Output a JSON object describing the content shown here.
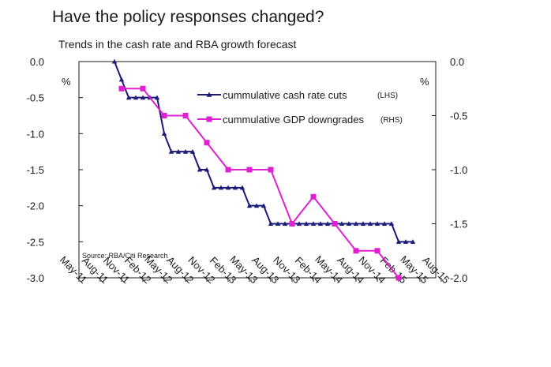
{
  "title": "Have the policy responses changed?",
  "subtitle": "Trends in the cash rate and RBA growth forecast",
  "chart_data": {
    "type": "line",
    "left_axis": {
      "unit": "%",
      "ylim": [
        -3.0,
        0.0
      ],
      "ticks": [
        "0.0",
        "-0.5",
        "-1.0",
        "-1.5",
        "-2.0",
        "-2.5",
        "-3.0"
      ]
    },
    "right_axis": {
      "unit": "%",
      "ylim": [
        -2.0,
        0.0
      ],
      "ticks": [
        "0.0",
        "-0.5",
        "-1.0",
        "-1.5",
        "-2.0"
      ]
    },
    "x_ticks": [
      "May-11",
      "Aug-11",
      "Nov-11",
      "Feb-12",
      "May-12",
      "Aug-12",
      "Nov-12",
      "Feb-13",
      "May-13",
      "Aug-13",
      "Nov-13",
      "Feb-14",
      "May-14",
      "Aug-14",
      "Nov-14",
      "Feb-15",
      "May-15",
      "Aug-15"
    ],
    "series": [
      {
        "name": "cummulative cash rate cuts",
        "axis_tag": "(LHS)",
        "axis": "left",
        "color": "#1a1a7a",
        "marker": "triangle",
        "points": [
          [
            "Oct-11",
            0.0
          ],
          [
            "Nov-11",
            -0.25
          ],
          [
            "Dec-11",
            -0.5
          ],
          [
            "Jan-12",
            -0.5
          ],
          [
            "Feb-12",
            -0.5
          ],
          [
            "Mar-12",
            -0.5
          ],
          [
            "Apr-12",
            -0.5
          ],
          [
            "May-12",
            -1.0
          ],
          [
            "Jun-12",
            -1.25
          ],
          [
            "Jul-12",
            -1.25
          ],
          [
            "Aug-12",
            -1.25
          ],
          [
            "Sep-12",
            -1.25
          ],
          [
            "Oct-12",
            -1.5
          ],
          [
            "Nov-12",
            -1.5
          ],
          [
            "Dec-12",
            -1.75
          ],
          [
            "Jan-13",
            -1.75
          ],
          [
            "Feb-13",
            -1.75
          ],
          [
            "Mar-13",
            -1.75
          ],
          [
            "Apr-13",
            -1.75
          ],
          [
            "May-13",
            -2.0
          ],
          [
            "Jun-13",
            -2.0
          ],
          [
            "Jul-13",
            -2.0
          ],
          [
            "Aug-13",
            -2.25
          ],
          [
            "Sep-13",
            -2.25
          ],
          [
            "Oct-13",
            -2.25
          ],
          [
            "Nov-13",
            -2.25
          ],
          [
            "Dec-13",
            -2.25
          ],
          [
            "Jan-14",
            -2.25
          ],
          [
            "Feb-14",
            -2.25
          ],
          [
            "Mar-14",
            -2.25
          ],
          [
            "Apr-14",
            -2.25
          ],
          [
            "May-14",
            -2.25
          ],
          [
            "Jun-14",
            -2.25
          ],
          [
            "Jul-14",
            -2.25
          ],
          [
            "Aug-14",
            -2.25
          ],
          [
            "Sep-14",
            -2.25
          ],
          [
            "Oct-14",
            -2.25
          ],
          [
            "Nov-14",
            -2.25
          ],
          [
            "Dec-14",
            -2.25
          ],
          [
            "Jan-15",
            -2.25
          ],
          [
            "Feb-15",
            -2.5
          ],
          [
            "Mar-15",
            -2.5
          ],
          [
            "Apr-15",
            -2.5
          ]
        ]
      },
      {
        "name": "cummulative GDP downgrades",
        "axis_tag": "(RHS)",
        "axis": "right",
        "color": "#e020d0",
        "marker": "square",
        "points": [
          [
            "Nov-11",
            -0.25
          ],
          [
            "Feb-12",
            -0.25
          ],
          [
            "May-12",
            -0.5
          ],
          [
            "Aug-12",
            -0.5
          ],
          [
            "Nov-12",
            -0.75
          ],
          [
            "Feb-13",
            -1.0
          ],
          [
            "May-13",
            -1.0
          ],
          [
            "Aug-13",
            -1.0
          ],
          [
            "Nov-13",
            -1.5
          ],
          [
            "Feb-14",
            -1.25
          ],
          [
            "May-14",
            -1.5
          ],
          [
            "Aug-14",
            -1.75
          ],
          [
            "Nov-14",
            -1.75
          ],
          [
            "Feb-15",
            -2.0
          ]
        ]
      }
    ],
    "legend": "top-right",
    "annotation": "Source: RBA/Citi Research",
    "grid": false
  }
}
